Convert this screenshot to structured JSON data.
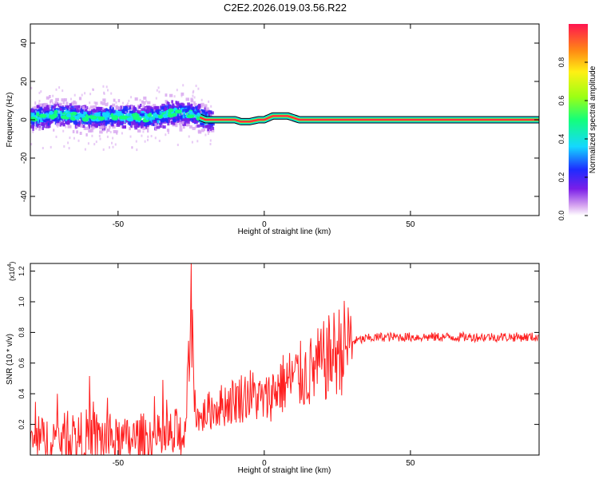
{
  "title": "C2E2.2026.019.03.56.R22",
  "chart_data": [
    {
      "type": "heatmap",
      "xlabel": "Height of straight line (km)",
      "ylabel": "Frequency (Hz)",
      "xlim": [
        -80,
        94
      ],
      "ylim": [
        -50,
        50
      ],
      "xticks": [
        -50,
        0,
        50
      ],
      "yticks": [
        -40,
        -20,
        0,
        20,
        40
      ],
      "grid": false,
      "colorbar": {
        "label": "Normalized spectral amplitude",
        "range": [
          0,
          1
        ],
        "ticks": [
          0.0,
          0.2,
          0.4,
          0.6,
          0.8
        ],
        "colors": [
          "#ffffff",
          "#d8a8f0",
          "#7a1ee8",
          "#1e2cff",
          "#14d8ff",
          "#14ff7a",
          "#9cff14",
          "#fff014",
          "#ff8a14",
          "#ff1450"
        ]
      },
      "ridge": {
        "x": [
          -80,
          -70,
          -60,
          -50,
          -40,
          -30,
          -25,
          -20,
          -15,
          -10,
          -8,
          -5,
          -2,
          0,
          3,
          8,
          12,
          20,
          40,
          60,
          80,
          94
        ],
        "y": [
          1,
          3,
          1,
          2,
          1,
          4,
          3,
          0,
          0,
          0,
          -1,
          -1,
          0,
          0,
          2,
          2,
          0,
          0,
          0,
          0,
          0,
          0
        ]
      }
    },
    {
      "type": "line",
      "xlabel": "Height of straight line (km)",
      "ylabel": "SNR (10 * v/v)",
      "yscale_label": "(x10",
      "yscale_exp": "4",
      "xlim": [
        -80,
        94
      ],
      "ylim": [
        0,
        12500
      ],
      "xticks": [
        -50,
        0,
        50
      ],
      "yticks": [
        2000,
        4000,
        6000,
        8000,
        10000,
        12000
      ],
      "ytick_labels": [
        "0.2",
        "0.4",
        "0.6",
        "0.8",
        "1.0",
        "1.2"
      ],
      "grid": false,
      "color": "#ff2020",
      "series": [
        {
          "x": [
            -80,
            -75,
            -70,
            -65,
            -60,
            -55,
            -50,
            -45,
            -40,
            -35,
            -30,
            -27,
            -26,
            -25,
            -24,
            -22,
            -20,
            -15,
            -10,
            -5,
            0,
            5,
            10,
            15,
            20,
            25,
            30,
            35,
            40,
            50,
            60,
            70,
            80,
            90,
            94
          ],
          "y": [
            800,
            1000,
            1100,
            1000,
            1200,
            1100,
            900,
            1000,
            1100,
            1000,
            1200,
            1500,
            5000,
            12000,
            3500,
            2200,
            2800,
            3200,
            3600,
            4000,
            3500,
            4500,
            5000,
            5300,
            6000,
            6800,
            7400,
            7600,
            7700,
            7700,
            7700,
            7700,
            7700,
            7700,
            7700
          ]
        }
      ]
    }
  ]
}
